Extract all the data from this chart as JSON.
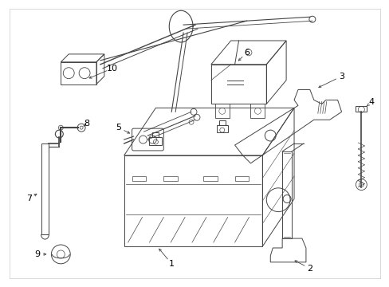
{
  "bg_color": "#ffffff",
  "line_color": "#444444",
  "label_color": "#000000",
  "fig_width": 4.89,
  "fig_height": 3.6,
  "dpi": 100
}
